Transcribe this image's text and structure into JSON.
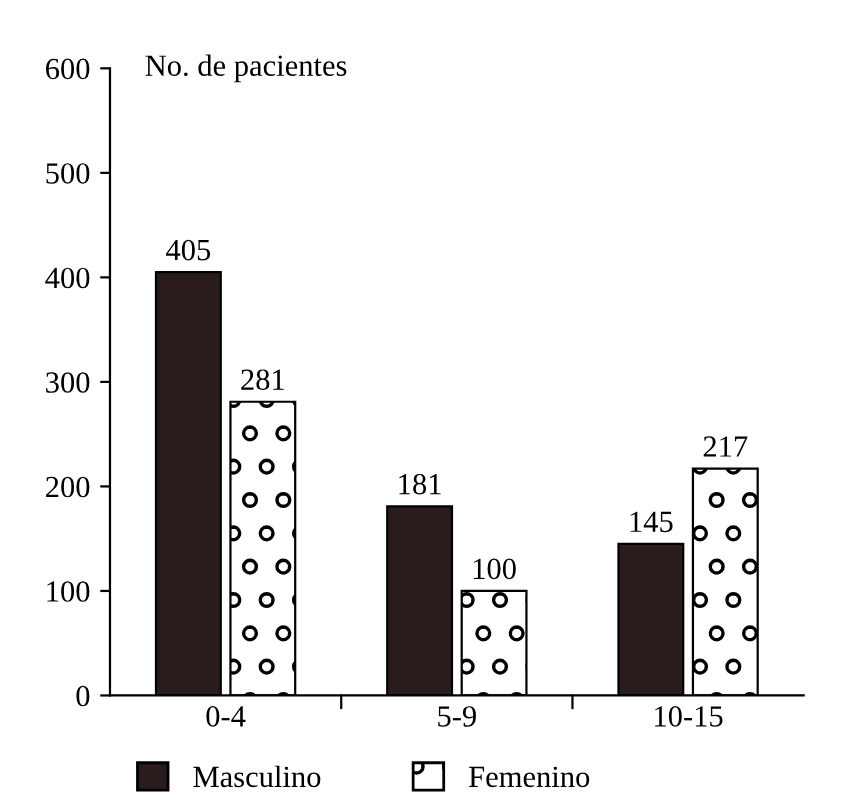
{
  "chart_data": {
    "type": "bar",
    "ylabel": "No. de pacientes",
    "categories": [
      "0-4",
      "5-9",
      "10-15"
    ],
    "series": [
      {
        "name": "Masculino",
        "color": "#2a1c1c",
        "values": [
          405,
          181,
          145
        ]
      },
      {
        "name": "Femenino",
        "color": "#000000",
        "values": [
          281,
          100,
          217
        ]
      }
    ],
    "ylim": [
      0,
      600
    ],
    "yticks": [
      0,
      100,
      200,
      300,
      400,
      500,
      600
    ],
    "data_labels": true,
    "legend": "bottom",
    "grid": false
  }
}
